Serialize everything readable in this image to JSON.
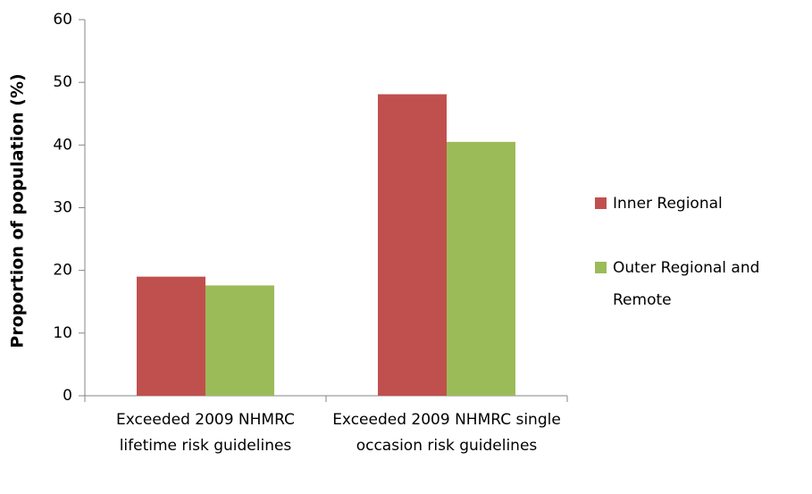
{
  "chart_data": {
    "type": "bar",
    "y_label": "Proportion of population (%)",
    "categories": [
      "Exceeded 2009 NHMRC lifetime risk guidelines",
      "Exceeded 2009 NHMRC single occasion risk guidelines"
    ],
    "series": [
      {
        "name": "Inner Regional",
        "color": "#c0504d",
        "values": [
          19.0,
          48.1
        ]
      },
      {
        "name": "Outer Regional and Remote",
        "color": "#9bbb59",
        "values": [
          17.6,
          40.5
        ]
      }
    ],
    "ylim": [
      0,
      60
    ],
    "yticks": [
      0,
      10,
      20,
      30,
      40,
      50,
      60
    ],
    "grid": false,
    "legend": "right"
  }
}
